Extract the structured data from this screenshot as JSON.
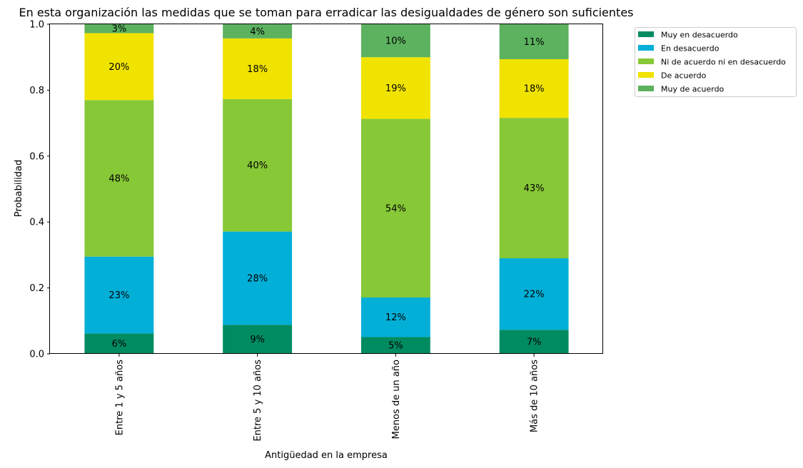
{
  "chart_data": {
    "type": "bar",
    "stacked": true,
    "title": "En esta organización las medidas que se toman para erradicar las desigualdades de género son suficientes",
    "xlabel": "Antigüedad en la empresa",
    "ylabel": "Probabilidad",
    "ylim": [
      0,
      1
    ],
    "yticks": [
      "0.0",
      "0.2",
      "0.4",
      "0.6",
      "0.8",
      "1.0"
    ],
    "ytick_values": [
      0,
      0.2,
      0.4,
      0.6,
      0.8,
      1.0
    ],
    "categories": [
      "Entre 1 y 5 años",
      "Entre 5 y 10 años",
      "Menos de un año",
      "Más de 10 años"
    ],
    "legend_position": "upper right, outside plot",
    "grid": false,
    "series": [
      {
        "name": "Muy en desacuerdo",
        "color": "#018b61",
        "values": [
          0.062,
          0.088,
          0.051,
          0.073
        ],
        "labels": [
          "6%",
          "9%",
          "5%",
          "7%"
        ]
      },
      {
        "name": "En desacuerdo",
        "color": "#02afd7",
        "values": [
          0.233,
          0.283,
          0.12,
          0.217
        ],
        "labels": [
          "23%",
          "28%",
          "12%",
          "22%"
        ]
      },
      {
        "name": "Ni de acuerdo ni en desacuerdo",
        "color": "#87c837",
        "values": [
          0.475,
          0.402,
          0.542,
          0.426
        ],
        "labels": [
          "48%",
          "40%",
          "54%",
          "43%"
        ]
      },
      {
        "name": "De acuerdo",
        "color": "#f0e300",
        "values": [
          0.203,
          0.184,
          0.187,
          0.178
        ],
        "labels": [
          "20%",
          "18%",
          "19%",
          "18%"
        ]
      },
      {
        "name": "Muy de acuerdo",
        "color": "#5cb25f",
        "values": [
          0.027,
          0.043,
          0.1,
          0.106
        ],
        "labels": [
          "3%",
          "4%",
          "10%",
          "11%"
        ]
      }
    ]
  }
}
